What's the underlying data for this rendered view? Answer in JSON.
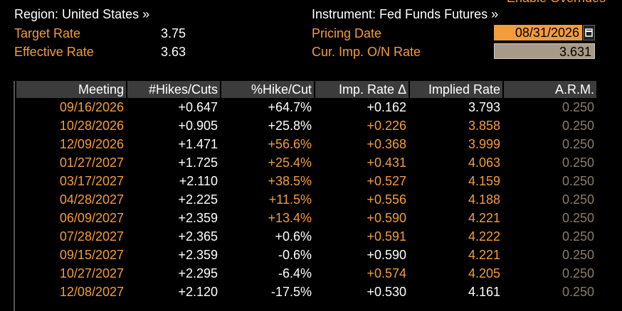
{
  "header": {
    "enable_overrides": "Enable Overrides",
    "region": "Region: United States »",
    "instrument": "Instrument: Fed Funds Futures »",
    "target_rate_label": "Target Rate",
    "target_rate": "3.75",
    "effective_rate_label": "Effective Rate",
    "effective_rate": "3.63",
    "pricing_date_label": "Pricing Date",
    "pricing_date": "08/31/2026",
    "imp_rate_label": "Cur. Imp. O/N Rate",
    "imp_rate": "3.631"
  },
  "table": {
    "columns": [
      "Meeting",
      "#Hikes/Cuts",
      "%Hike/Cut",
      "Imp. Rate Δ",
      "Implied Rate",
      "A.R.M."
    ],
    "rows": [
      [
        "09/16/2026",
        "+0.647",
        "+64.7%",
        "+0.162",
        "3.793",
        "0.250"
      ],
      [
        "10/28/2026",
        "+0.905",
        "+25.8%",
        "+0.226",
        "3.858",
        "0.250"
      ],
      [
        "12/09/2026",
        "+1.471",
        "+56.6%",
        "+0.368",
        "3.999",
        "0.250"
      ],
      [
        "01/27/2027",
        "+1.725",
        "+25.4%",
        "+0.431",
        "4.063",
        "0.250"
      ],
      [
        "03/17/2027",
        "+2.110",
        "+38.5%",
        "+0.527",
        "4.159",
        "0.250"
      ],
      [
        "04/28/2027",
        "+2.225",
        "+11.5%",
        "+0.556",
        "4.188",
        "0.250"
      ],
      [
        "06/09/2027",
        "+2.359",
        "+13.4%",
        "+0.590",
        "4.221",
        "0.250"
      ],
      [
        "07/28/2027",
        "+2.365",
        "+0.6%",
        "+0.591",
        "4.222",
        "0.250"
      ],
      [
        "09/15/2027",
        "+2.359",
        "-0.6%",
        "+0.590",
        "4.221",
        "0.250"
      ],
      [
        "10/27/2027",
        "+2.295",
        "-6.4%",
        "+0.574",
        "4.205",
        "0.250"
      ],
      [
        "12/08/2027",
        "+2.120",
        "-17.5%",
        "+0.530",
        "4.161",
        "0.250"
      ]
    ],
    "cell_colors": [
      [
        "#f39c3c",
        "#ffffff",
        "#ffffff",
        "#ffffff",
        "#ffffff",
        "#8c7b6a"
      ],
      [
        "#f39c3c",
        "#ffffff",
        "#ffffff",
        "#f39c3c",
        "#f39c3c",
        "#8c7b6a"
      ],
      [
        "#f39c3c",
        "#ffffff",
        "#f39c3c",
        "#f39c3c",
        "#f39c3c",
        "#8c7b6a"
      ],
      [
        "#f39c3c",
        "#ffffff",
        "#f39c3c",
        "#f39c3c",
        "#f39c3c",
        "#8c7b6a"
      ],
      [
        "#f39c3c",
        "#ffffff",
        "#f39c3c",
        "#f39c3c",
        "#f39c3c",
        "#8c7b6a"
      ],
      [
        "#f39c3c",
        "#ffffff",
        "#f39c3c",
        "#f39c3c",
        "#f39c3c",
        "#8c7b6a"
      ],
      [
        "#f39c3c",
        "#ffffff",
        "#f39c3c",
        "#f39c3c",
        "#f39c3c",
        "#8c7b6a"
      ],
      [
        "#f39c3c",
        "#ffffff",
        "#ffffff",
        "#f39c3c",
        "#f39c3c",
        "#8c7b6a"
      ],
      [
        "#f39c3c",
        "#ffffff",
        "#ffffff",
        "#ffffff",
        "#f39c3c",
        "#8c7b6a"
      ],
      [
        "#f39c3c",
        "#ffffff",
        "#ffffff",
        "#f39c3c",
        "#f39c3c",
        "#8c7b6a"
      ],
      [
        "#f39c3c",
        "#ffffff",
        "#ffffff",
        "#ffffff",
        "#ffffff",
        "#8c7b6a"
      ]
    ]
  }
}
